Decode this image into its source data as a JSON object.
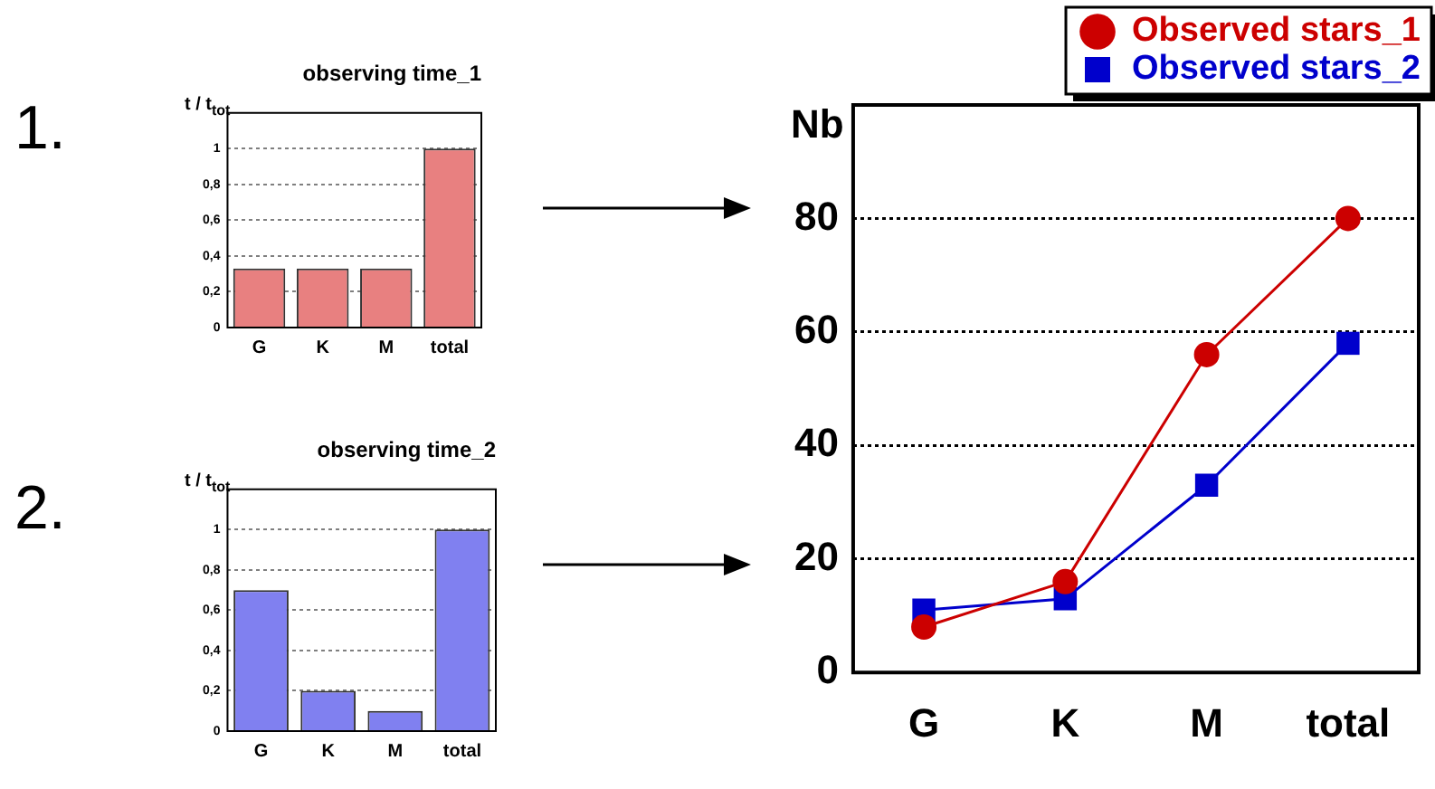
{
  "chart_data": [
    {
      "type": "bar",
      "title": "observing time_1",
      "ylabel": "t / t$_{tot}$",
      "categories": [
        "G",
        "K",
        "M",
        "total"
      ],
      "values": [
        0.33,
        0.33,
        0.33,
        1
      ],
      "color": "#e88080",
      "ylim": [
        0,
        1.2
      ],
      "yticks": [
        0,
        {
          "value": 0.2,
          "label": "0,2"
        },
        {
          "value": 0.4,
          "label": "0,4"
        },
        {
          "value": 0.6,
          "label": "0,6"
        },
        {
          "value": 0.8,
          "label": "0,8"
        },
        1
      ],
      "grid": "y",
      "annotations": [
        "1."
      ]
    },
    {
      "type": "bar",
      "title": "observing time_2",
      "ylabel": "t / t$_{tot}$",
      "categories": [
        "G",
        "K",
        "M",
        "total"
      ],
      "values": [
        0.7,
        0.2,
        0.1,
        1
      ],
      "color": "#8080f0",
      "ylim": [
        0,
        1.2
      ],
      "yticks": [
        0,
        {
          "value": 0.2,
          "label": "0,2"
        },
        {
          "value": 0.4,
          "label": "0,4"
        },
        {
          "value": 0.6,
          "label": "0,6"
        },
        {
          "value": 0.8,
          "label": "0,8"
        },
        1
      ],
      "grid": "y",
      "annotations": [
        "2."
      ]
    },
    {
      "type": "line",
      "ylabel": "Nb",
      "categories": [
        "G",
        "K",
        "M",
        "total"
      ],
      "series": [
        {
          "name": "Observed stars_1",
          "color": "#cc0000",
          "values": [
            8,
            16,
            56,
            80
          ],
          "marker": "circle"
        },
        {
          "name": "Observed stars_2",
          "color": "#0000cc",
          "values": [
            11,
            13,
            33,
            58
          ],
          "marker": "square"
        }
      ],
      "ylim": [
        0,
        100
      ],
      "yticks": [
        0,
        20,
        40,
        60,
        80
      ],
      "grid": "y",
      "legend": "top right",
      "line_style": "solid"
    }
  ]
}
